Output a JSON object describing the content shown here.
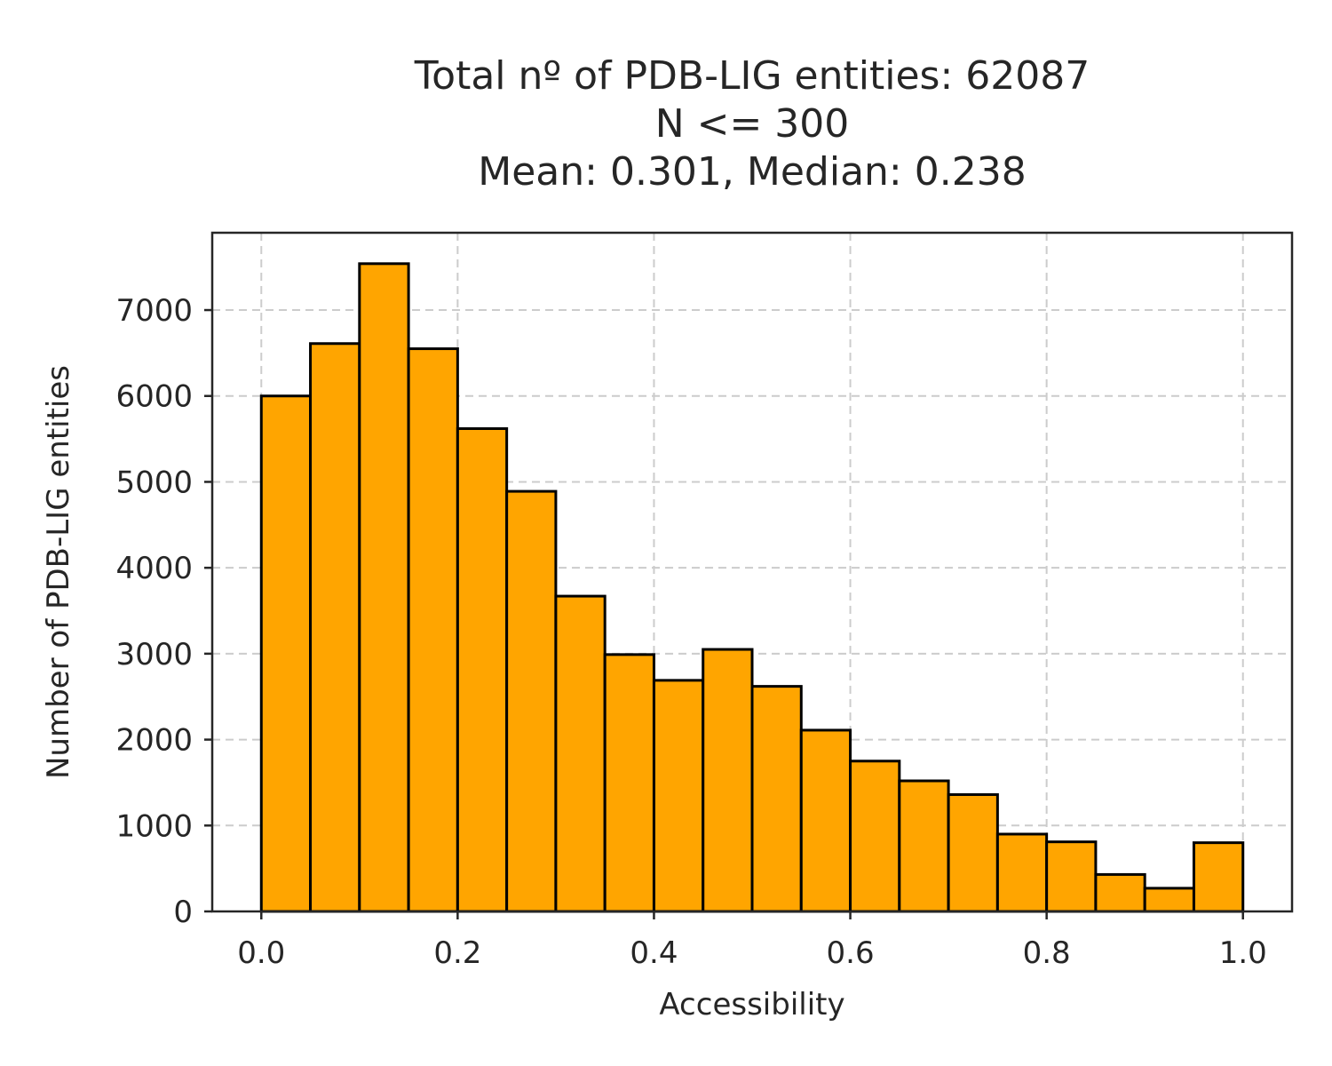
{
  "chart_data": {
    "type": "bar",
    "title_lines": [
      "Total nº of PDB-LIG entities: 62087",
      "N <= 300",
      "Mean: 0.301, Median: 0.238"
    ],
    "xlabel": "Accessibility",
    "ylabel": "Number of PDB-LIG entities",
    "xlim": [
      -0.05,
      1.05
    ],
    "ylim": [
      0,
      7900
    ],
    "xticks": [
      0.0,
      0.2,
      0.4,
      0.6,
      0.8,
      1.0
    ],
    "xtick_labels": [
      "0.0",
      "0.2",
      "0.4",
      "0.6",
      "0.8",
      "1.0"
    ],
    "yticks": [
      0,
      1000,
      2000,
      3000,
      4000,
      5000,
      6000,
      7000
    ],
    "ytick_labels": [
      "0",
      "1000",
      "2000",
      "3000",
      "4000",
      "5000",
      "6000",
      "7000"
    ],
    "grid": true,
    "bin_edges": [
      0.0,
      0.05,
      0.1,
      0.15,
      0.2,
      0.25,
      0.3,
      0.35,
      0.4,
      0.45,
      0.5,
      0.55,
      0.6,
      0.65,
      0.7,
      0.75,
      0.8,
      0.85,
      0.9,
      0.95,
      1.0
    ],
    "values": [
      6000,
      6610,
      7540,
      6550,
      5620,
      4890,
      3670,
      2990,
      2690,
      3050,
      2620,
      2110,
      1750,
      1520,
      1360,
      900,
      810,
      430,
      270,
      800
    ],
    "colors": {
      "bar_fill": "#ffa500",
      "bar_edge": "#000000",
      "grid": "#cccccc",
      "axis": "#262626"
    }
  }
}
